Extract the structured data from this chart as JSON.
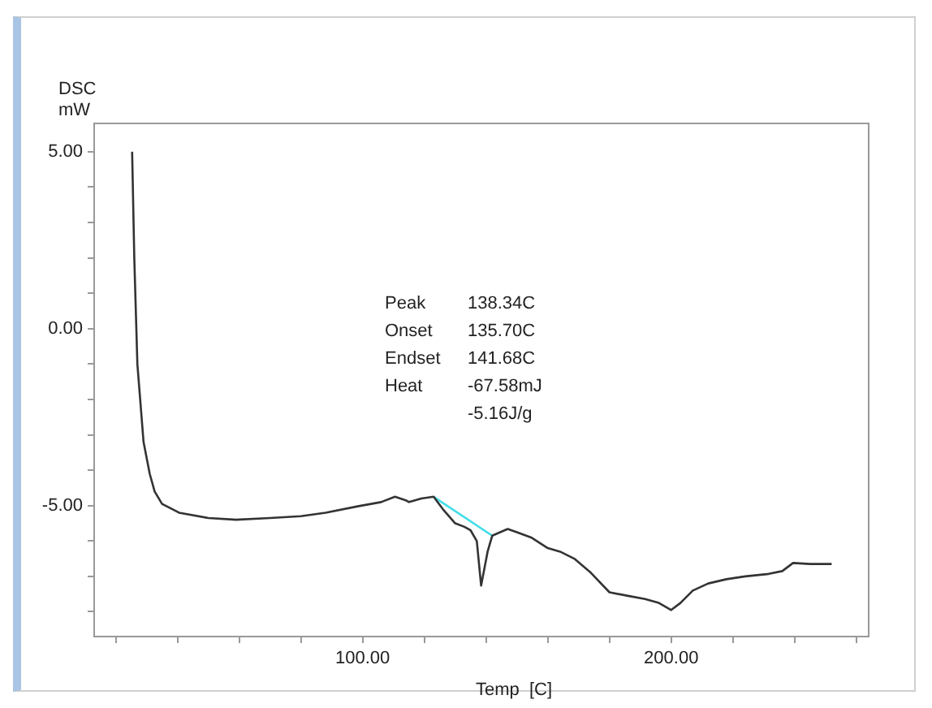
{
  "chart_data": {
    "type": "line",
    "xlabel": "Temp  [C]",
    "ylabel": "DSC\nmW",
    "annotations": [
      "Peak\t138.34C",
      "Onset\t135.70C",
      "Endset\t141.68C",
      "Heat\t-67.58mJ",
      "\t-5.16J/g"
    ],
    "xlim": [
      13,
      264
    ],
    "ylim": [
      -8.7,
      5.8
    ],
    "xticks": [
      {
        "value": 20,
        "label": null
      },
      {
        "value": 40,
        "label": null
      },
      {
        "value": 60,
        "label": null
      },
      {
        "value": 80,
        "label": null
      },
      {
        "value": 100,
        "label": "100.00"
      },
      {
        "value": 120,
        "label": null
      },
      {
        "value": 140,
        "label": null
      },
      {
        "value": 160,
        "label": null
      },
      {
        "value": 180,
        "label": null
      },
      {
        "value": 200,
        "label": "200.00"
      },
      {
        "value": 220,
        "label": null
      },
      {
        "value": 240,
        "label": null
      },
      {
        "value": 260,
        "label": null
      }
    ],
    "yticks": [
      {
        "value": -8,
        "label": null
      },
      {
        "value": -7,
        "label": null
      },
      {
        "value": -6,
        "label": null
      },
      {
        "value": -5,
        "label": "-5.00"
      },
      {
        "value": -4,
        "label": null
      },
      {
        "value": -3,
        "label": null
      },
      {
        "value": -2,
        "label": null
      },
      {
        "value": -1,
        "label": null
      },
      {
        "value": 0,
        "label": "0.00"
      },
      {
        "value": 1,
        "label": null
      },
      {
        "value": 2,
        "label": null
      },
      {
        "value": 3,
        "label": null
      },
      {
        "value": 4,
        "label": null
      },
      {
        "value": 5,
        "label": "5.00"
      }
    ],
    "grid": false,
    "legend": false,
    "marker": "none",
    "line_style": "solid",
    "series": [
      {
        "color": "#333333",
        "x": [
          25.3,
          26,
          27,
          29,
          31,
          32.6,
          35,
          40.5,
          50,
          59,
          70,
          80,
          88,
          98.4,
          106,
          110.5,
          114,
          115,
          119,
          123,
          126,
          130,
          133,
          135,
          137,
          138.4,
          140.5,
          142,
          147,
          150,
          154.6,
          160,
          164,
          168.6,
          174,
          180,
          186,
          191.5,
          196,
          200,
          203,
          207,
          212,
          217.9,
          224,
          231.6,
          236,
          239.5,
          245,
          252
        ],
        "values": [
          5.0,
          2.0,
          -1.0,
          -3.2,
          -4.1,
          -4.6,
          -4.95,
          -5.2,
          -5.35,
          -5.4,
          -5.35,
          -5.3,
          -5.2,
          -5.02,
          -4.9,
          -4.75,
          -4.85,
          -4.9,
          -4.8,
          -4.75,
          -5.1,
          -5.5,
          -5.6,
          -5.7,
          -6.0,
          -7.26,
          -6.3,
          -5.85,
          -5.66,
          -5.75,
          -5.9,
          -6.2,
          -6.3,
          -6.5,
          -6.9,
          -7.45,
          -7.55,
          -7.64,
          -7.75,
          -7.95,
          -7.75,
          -7.4,
          -7.2,
          -7.08,
          -7.0,
          -6.93,
          -6.85,
          -6.62,
          -6.65,
          -6.65
        ]
      },
      {
        "color": "#40dde8",
        "x": [
          123,
          142
        ],
        "values": [
          -4.75,
          -5.85
        ]
      }
    ]
  }
}
